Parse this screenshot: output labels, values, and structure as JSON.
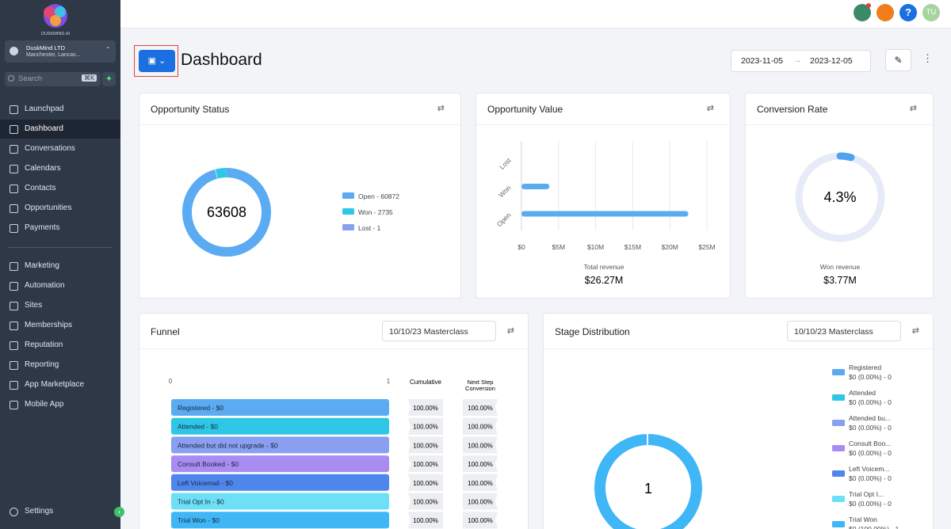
{
  "sidebar": {
    "logo": "DUSKMIND.AI",
    "account": {
      "name": "DuskMind LTD",
      "location": "Manchester, Lancas..."
    },
    "search": {
      "placeholder": "Search",
      "shortcut": "⌘K"
    },
    "nav": [
      "Launchpad",
      "Dashboard",
      "Conversations",
      "Calendars",
      "Contacts",
      "Opportunities",
      "Payments"
    ],
    "nav2": [
      "Marketing",
      "Automation",
      "Sites",
      "Memberships",
      "Reputation",
      "Reporting",
      "App Marketplace",
      "Mobile App"
    ],
    "active": "Dashboard",
    "settings": "Settings"
  },
  "header": {
    "help": "?",
    "avatar": "TU"
  },
  "title": "Dashboard",
  "date_range": {
    "start": "2023-11-05",
    "end": "2023-12-05"
  },
  "opportunity_status": {
    "title": "Opportunity Status",
    "total": 63608,
    "segments": [
      {
        "label": "Open - 60872",
        "value": 60872,
        "color": "#5aabf2"
      },
      {
        "label": "Won - 2735",
        "value": 2735,
        "color": "#2ec7e6"
      },
      {
        "label": "Lost - 1",
        "value": 1,
        "color": "#8a9ff0"
      }
    ]
  },
  "opportunity_value": {
    "title": "Opportunity Value",
    "type": "bar",
    "orientation": "horizontal",
    "categories": [
      "Lost",
      "Won",
      "Open"
    ],
    "values": [
      0,
      3770000,
      22500000
    ],
    "color": "#5aabf2",
    "xlim": [
      0,
      25000000
    ],
    "xticks": [
      {
        "value": 0,
        "label": "$0"
      },
      {
        "value": 5000000,
        "label": "$5M"
      },
      {
        "value": 10000000,
        "label": "$10M"
      },
      {
        "value": 15000000,
        "label": "$15M"
      },
      {
        "value": 20000000,
        "label": "$20M"
      },
      {
        "value": 25000000,
        "label": "$25M"
      }
    ],
    "grid": true,
    "footer_label": "Total revenue",
    "footer_value": "$26.27M"
  },
  "conversion_rate": {
    "title": "Conversion Rate",
    "value": 4.3,
    "value_label": "4.3%",
    "color": "#4da3f0",
    "footer_label": "Won revenue",
    "footer_value": "$3.77M"
  },
  "funnel": {
    "title": "Funnel",
    "filter": "10/10/23 Masterclass",
    "axis": [
      "0",
      "1"
    ],
    "columns": [
      "Cumulative",
      "Next Step Conversion"
    ],
    "rows": [
      {
        "label": "Registered - $0",
        "cumulative": "100.00%",
        "next": "100.00%",
        "color": "#5aabf2"
      },
      {
        "label": "Attended - $0",
        "cumulative": "100.00%",
        "next": "100.00%",
        "color": "#2ec7e6"
      },
      {
        "label": "Attended but did not upgrade - $0",
        "cumulative": "100.00%",
        "next": "100.00%",
        "color": "#8a9ff0"
      },
      {
        "label": "Consult Booked - $0",
        "cumulative": "100.00%",
        "next": "100.00%",
        "color": "#a98cf2"
      },
      {
        "label": "Left Voicemail - $0",
        "cumulative": "100.00%",
        "next": "100.00%",
        "color": "#4f86ec"
      },
      {
        "label": "Trial Opt In - $0",
        "cumulative": "100.00%",
        "next": "100.00%",
        "color": "#6ee0f5"
      },
      {
        "label": "Trial Won - $0",
        "cumulative": "100.00%",
        "next": "100.00%",
        "color": "#3fb6f5"
      }
    ]
  },
  "stage_distribution": {
    "title": "Stage Distribution",
    "filter": "10/10/23 Masterclass",
    "total": 1,
    "segments": [
      {
        "name": "Registered",
        "detail": "$0 (0.00%) - 0",
        "value": 0,
        "color": "#5aabf2"
      },
      {
        "name": "Attended",
        "detail": "$0 (0.00%) - 0",
        "value": 0,
        "color": "#2ec7e6"
      },
      {
        "name": "Attended bu...",
        "detail": "$0 (0.00%) - 0",
        "value": 0,
        "color": "#8a9ff0"
      },
      {
        "name": "Consult Boo...",
        "detail": "$0 (0.00%) - 0",
        "value": 0,
        "color": "#a98cf2"
      },
      {
        "name": "Left Voicem...",
        "detail": "$0 (0.00%) - 0",
        "value": 0,
        "color": "#4f86ec"
      },
      {
        "name": "Trial Opt I...",
        "detail": "$0 (0.00%) - 0",
        "value": 0,
        "color": "#6ee0f5"
      },
      {
        "name": "Trial Won",
        "detail": "$0 (100.00%) - 1",
        "value": 1,
        "color": "#3fb6f5"
      }
    ]
  }
}
